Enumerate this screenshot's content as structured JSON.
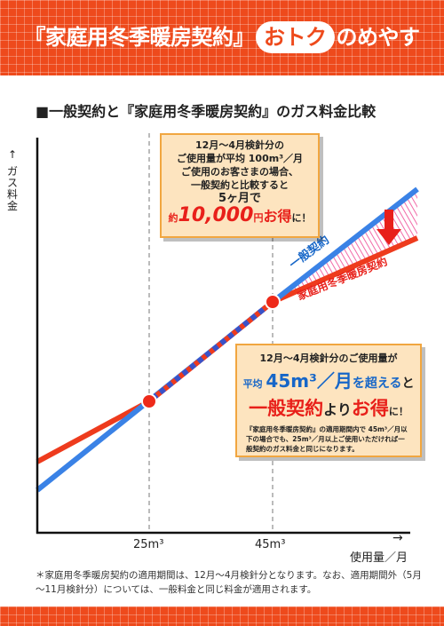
{
  "header": {
    "title_before": "『家庭用冬季暖房契約』",
    "badge": "おトク",
    "title_after": "のめやす"
  },
  "section_title": "■一般契約と『家庭用冬季暖房契約』のガス料金比較",
  "axes": {
    "y_arrow": "↑",
    "y_label": "ガス料金",
    "x_label": "使用量／月",
    "x_arrow": "→",
    "tick_25": "25m³",
    "tick_45": "45m³"
  },
  "series": {
    "general": "一般契約",
    "winter": "家庭用冬季暖房契約"
  },
  "colors": {
    "general": "#3a82e6",
    "winter": "#ee3b1d",
    "accent": "#ee4a1c",
    "callout_bg": "#fde4bf"
  },
  "callout1": {
    "line1": "12月～4月検針分の",
    "line2": "ご使用量が平均 100m³／月",
    "line3": "ご使用のお客さまの場合、",
    "line4": "一般契約と比較すると",
    "line5": "5ヶ月で",
    "prefix": "約",
    "amount": "10,000",
    "unit": "円",
    "suffix": "お得",
    "end": "に！"
  },
  "callout2": {
    "line1": "12月～4月検針分のご使用量が",
    "avg": "平均",
    "amount": "45m³／月",
    "over": "を超える",
    "to": "と",
    "big_general": "一般契約",
    "big_yori": "より",
    "big_otoku": "お得",
    "end": "に！",
    "note": "『家庭用冬季暖房契約』の適用期間内で 45m³／月以下の場合でも、25m³／月以上ご使用いただければ一般契約のガス料金と同じになります。"
  },
  "footnote": "＊家庭用冬季暖房契約の適用期間は、12月～4月検針分となります。なお、適用期間外（5月～11月検針分）については、一般料金と同じ料金が適用されます。"
}
